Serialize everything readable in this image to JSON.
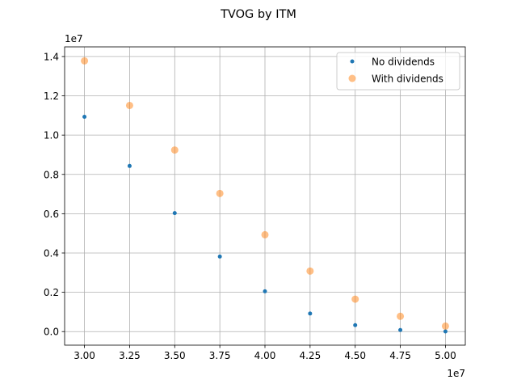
{
  "chart_data": {
    "type": "scatter",
    "title": "TVOG by ITM",
    "xlabel": "",
    "ylabel": "",
    "x_offset_label": "1e7",
    "y_offset_label": "1e7",
    "xlim": [
      2.89,
      5.11
    ],
    "ylim": [
      -0.069,
      1.449
    ],
    "x_ticks": [
      3.0,
      3.25,
      3.5,
      3.75,
      4.0,
      4.25,
      4.5,
      4.75,
      5.0
    ],
    "x_tick_labels": [
      "3.00",
      "3.25",
      "3.50",
      "3.75",
      "4.00",
      "4.25",
      "4.50",
      "4.75",
      "5.00"
    ],
    "y_ticks": [
      0.0,
      0.2,
      0.4,
      0.6,
      0.8,
      1.0,
      1.2,
      1.4
    ],
    "y_tick_labels": [
      "0.0",
      "0.2",
      "0.4",
      "0.6",
      "0.8",
      "1.0",
      "1.2",
      "1.4"
    ],
    "grid": true,
    "legend_position": "top-right",
    "x": [
      3.0,
      3.25,
      3.5,
      3.75,
      4.0,
      4.25,
      4.5,
      4.75,
      5.0
    ],
    "series": [
      {
        "name": "No dividends",
        "color": "#1f77b4",
        "marker_size": "small",
        "values": [
          1.093,
          0.843,
          0.603,
          0.382,
          0.205,
          0.092,
          0.033,
          0.008,
          0.001
        ]
      },
      {
        "name": "With dividends",
        "color": "#ff7f0e",
        "marker_size": "large",
        "marker_alpha": 0.5,
        "values": [
          1.378,
          1.151,
          0.924,
          0.703,
          0.493,
          0.308,
          0.165,
          0.078,
          0.028
        ]
      }
    ]
  }
}
